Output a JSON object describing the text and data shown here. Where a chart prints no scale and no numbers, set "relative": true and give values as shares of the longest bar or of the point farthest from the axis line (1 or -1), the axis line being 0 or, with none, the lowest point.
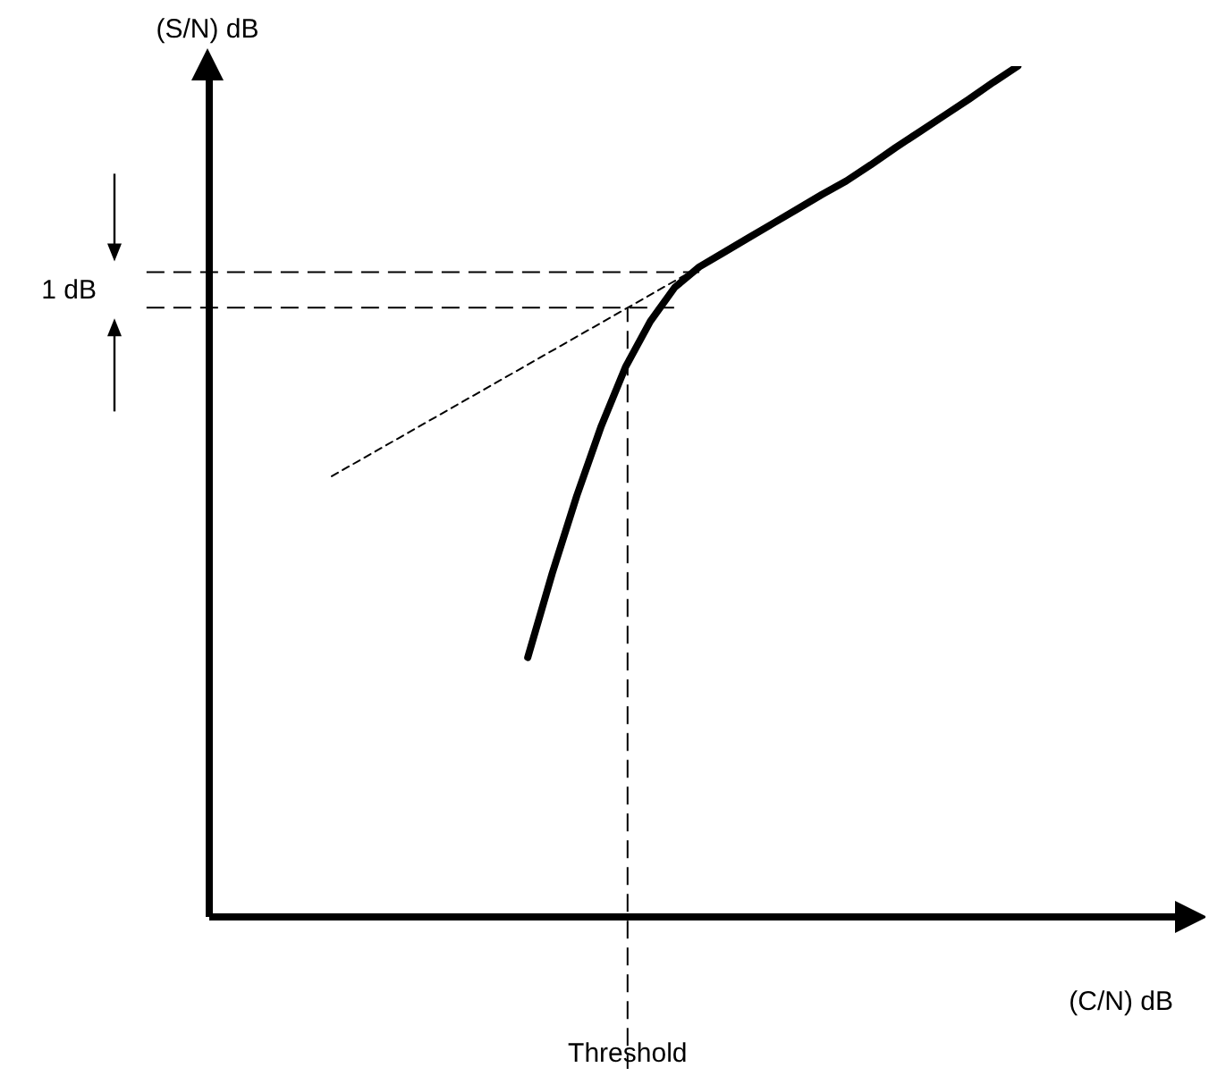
{
  "chart_data": {
    "type": "line",
    "relative": true,
    "xlabel": "(C/N) dB",
    "ylabel": "(S/N) dB",
    "categories": [
      null,
      null,
      null,
      null,
      null,
      null,
      null,
      null,
      null,
      null,
      null,
      null,
      null,
      null,
      null,
      null,
      null,
      null,
      null,
      null,
      null,
      null,
      null,
      null,
      null,
      null,
      null,
      null,
      null,
      null,
      null,
      null,
      null,
      null,
      null,
      null,
      null,
      null,
      null,
      null,
      null
    ],
    "series": [
      {
        "color": "#000000",
        "values": [
          null,
          null,
          null,
          null,
          null,
          null,
          null,
          null,
          null,
          null,
          null,
          null,
          null,
          0.305,
          0.404,
          0.495,
          0.577,
          0.647,
          0.7,
          0.74,
          0.764,
          0.781,
          0.798,
          0.815,
          0.832,
          0.849,
          0.865,
          0.884,
          0.904,
          0.923,
          0.942,
          0.961,
          0.981,
          1.0,
          null,
          null,
          null,
          null,
          null,
          null,
          null
        ]
      },
      {
        "color": "#000000",
        "line_style": "dashed",
        "values": [
          null,
          null,
          null,
          null,
          null,
          0.518,
          null,
          null,
          null,
          null,
          null,
          null,
          null,
          null,
          null,
          null,
          null,
          null,
          null,
          null,
          0.764,
          null,
          null,
          null,
          null,
          null,
          null,
          null,
          null,
          null,
          null,
          null,
          null,
          null,
          null,
          null,
          null,
          null,
          null,
          null,
          null
        ]
      }
    ],
    "ref_lines": [
      {
        "axis": "y",
        "value": 0.758,
        "line_style": "dashed"
      },
      {
        "axis": "y",
        "value": 0.716,
        "line_style": "dashed"
      }
    ],
    "annotations": [
      "1 dB",
      "Threshold"
    ]
  }
}
